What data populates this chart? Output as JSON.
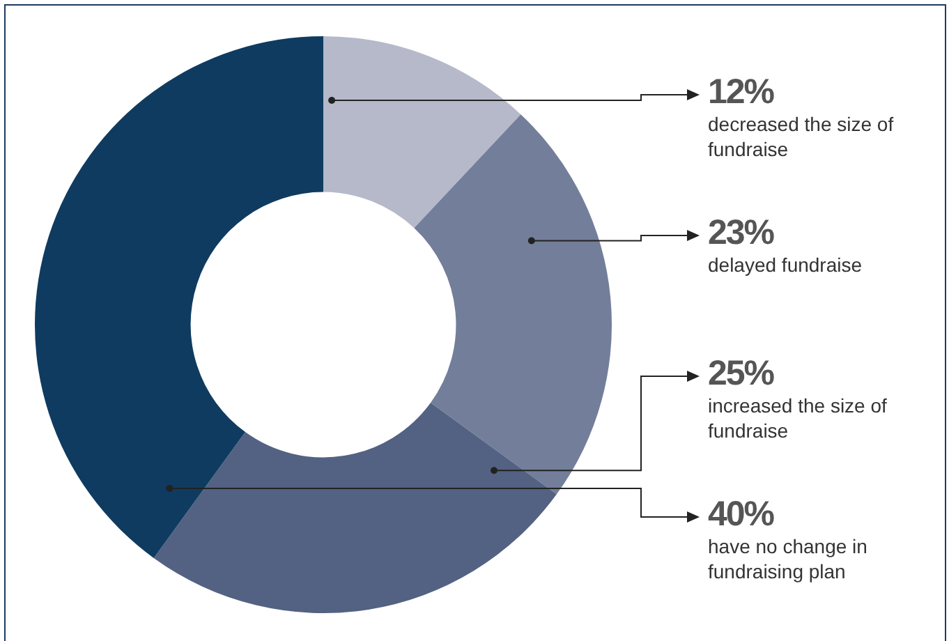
{
  "chart_data": {
    "type": "donut",
    "categories": [
      "decreased the size of fundraise",
      "delayed fundraise",
      "increased the size of fundraise",
      "have no change in fundraising plan"
    ],
    "values": [
      12,
      23,
      25,
      40
    ],
    "colors": [
      "#b5b9ca",
      "#737e9a",
      "#536282",
      "#0f3b60"
    ],
    "value_labels": [
      "12%",
      "23%",
      "25%",
      "40%"
    ],
    "legend": false
  }
}
